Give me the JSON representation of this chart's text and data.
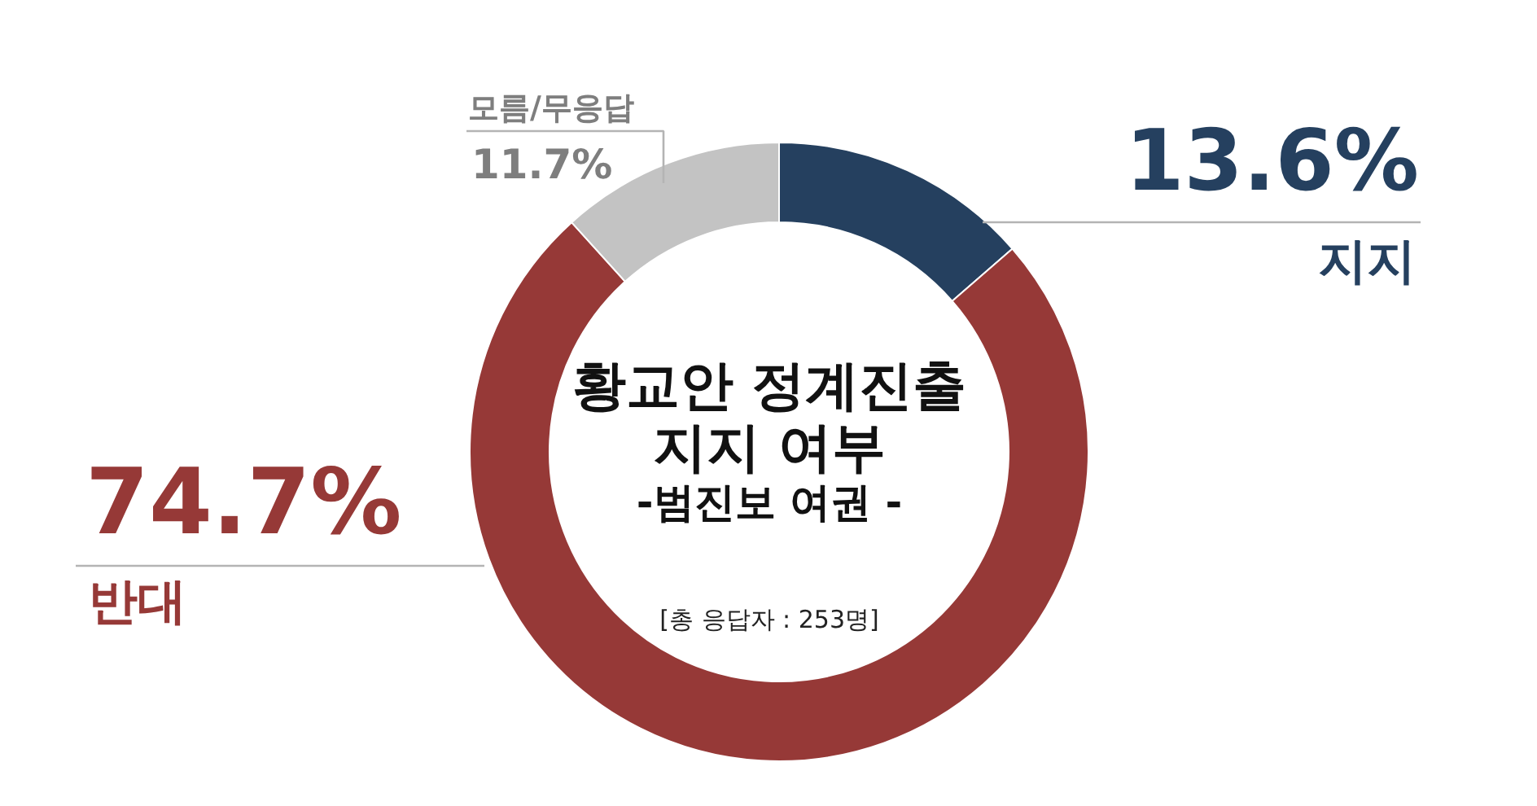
{
  "chart_data": {
    "type": "donut",
    "title": "황교안 정계진출\n지지 여부",
    "subtitle": "-범진보 여권 -",
    "annotations": [
      "[총 응답자 : 253명]"
    ],
    "categories": [
      "지지",
      "반대",
      "모름/무응답"
    ],
    "values": [
      13.6,
      74.7,
      11.7
    ],
    "colors": [
      "#25405f",
      "#963937",
      "#c3c3c3"
    ],
    "value_labels": [
      "13.6%",
      "74.7%",
      "11.7%"
    ]
  }
}
